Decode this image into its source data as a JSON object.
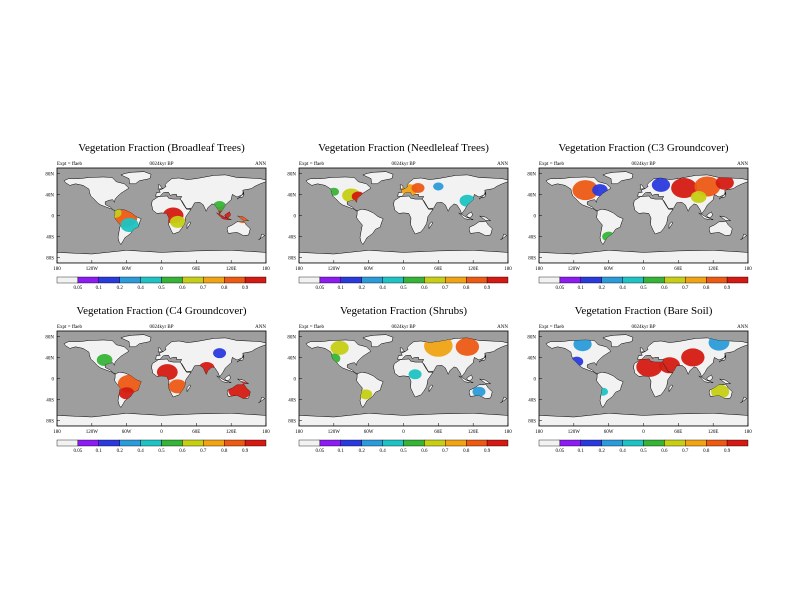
{
  "colorbar": {
    "levels": [
      "0.05",
      "0.1",
      "0.2",
      "0.4",
      "0.5",
      "0.6",
      "0.7",
      "0.8",
      "0.9"
    ],
    "colors": [
      "#f2f2f2",
      "#8c1cf2",
      "#2a3adc",
      "#2b9bd9",
      "#1ec3c3",
      "#36b437",
      "#c6cf14",
      "#f0a315",
      "#ec5a14",
      "#d41a12"
    ]
  },
  "map_colors": {
    "ocean": "#9e9e9e",
    "land": "#f2f2f2",
    "coast": "#000000"
  },
  "x_ticks": [
    "180",
    "120W",
    "60W",
    "0",
    "60E",
    "120E",
    "180"
  ],
  "y_ticks": [
    "80N",
    "40N",
    "0",
    "40S",
    "80S"
  ],
  "chart_data": [
    {
      "type": "heatmap",
      "title": "Vegetation Fraction (Broadleaf Trees)",
      "expt": "Expt = ffaeb",
      "subtitle": "0024kyr BP",
      "season": "ANN",
      "hotspots": [
        {
          "lon": -62,
          "lat": -5,
          "value": 0.8,
          "r": 9
        },
        {
          "lon": -55,
          "lat": -18,
          "value": 0.4,
          "r": 7
        },
        {
          "lon": -80,
          "lat": 5,
          "value": 0.6,
          "r": 5
        },
        {
          "lon": 20,
          "lat": 0,
          "value": 0.9,
          "r": 8
        },
        {
          "lon": 28,
          "lat": -12,
          "value": 0.6,
          "r": 6
        },
        {
          "lon": 110,
          "lat": 0,
          "value": 0.9,
          "r": 10
        },
        {
          "lon": 140,
          "lat": -5,
          "value": 0.8,
          "r": 5
        },
        {
          "lon": 100,
          "lat": 18,
          "value": 0.5,
          "r": 5
        }
      ]
    },
    {
      "type": "heatmap",
      "title": "Vegetation Fraction (Needleleaf Trees)",
      "expt": "Expt = ffaeb",
      "subtitle": "0024kyr BP",
      "season": "ANN",
      "hotspots": [
        {
          "lon": -90,
          "lat": 38,
          "value": 0.6,
          "r": 7
        },
        {
          "lon": -78,
          "lat": 36,
          "value": 0.9,
          "r": 5
        },
        {
          "lon": -120,
          "lat": 45,
          "value": 0.5,
          "r": 4
        },
        {
          "lon": 10,
          "lat": 48,
          "value": 0.7,
          "r": 6
        },
        {
          "lon": 25,
          "lat": 52,
          "value": 0.8,
          "r": 5
        },
        {
          "lon": 110,
          "lat": 28,
          "value": 0.4,
          "r": 6
        },
        {
          "lon": 60,
          "lat": 55,
          "value": 0.2,
          "r": 4
        }
      ]
    },
    {
      "type": "heatmap",
      "title": "Vegetation Fraction (C3 Groundcover)",
      "expt": "Expt = ffaeb",
      "subtitle": "0024kyr BP",
      "season": "ANN",
      "hotspots": [
        {
          "lon": -100,
          "lat": 48,
          "value": 0.8,
          "r": 10
        },
        {
          "lon": -75,
          "lat": 48,
          "value": 0.1,
          "r": 6
        },
        {
          "lon": 30,
          "lat": 58,
          "value": 0.1,
          "r": 7
        },
        {
          "lon": 70,
          "lat": 52,
          "value": 0.9,
          "r": 10
        },
        {
          "lon": 110,
          "lat": 55,
          "value": 0.8,
          "r": 10
        },
        {
          "lon": 140,
          "lat": 62,
          "value": 0.9,
          "r": 7
        },
        {
          "lon": 95,
          "lat": 35,
          "value": 0.6,
          "r": 6
        },
        {
          "lon": -60,
          "lat": -40,
          "value": 0.5,
          "r": 5
        }
      ]
    },
    {
      "type": "heatmap",
      "title": "Vegetation Fraction (C4 Groundcover)",
      "expt": "Expt = ffaeb",
      "subtitle": "0024kyr BP",
      "season": "ANN",
      "hotspots": [
        {
          "lon": -98,
          "lat": 35,
          "value": 0.5,
          "r": 6
        },
        {
          "lon": -55,
          "lat": -10,
          "value": 0.8,
          "r": 9
        },
        {
          "lon": -60,
          "lat": -28,
          "value": 0.9,
          "r": 6
        },
        {
          "lon": 10,
          "lat": 12,
          "value": 0.9,
          "r": 8
        },
        {
          "lon": 28,
          "lat": -15,
          "value": 0.8,
          "r": 7
        },
        {
          "lon": 78,
          "lat": 20,
          "value": 0.9,
          "r": 6
        },
        {
          "lon": 135,
          "lat": -22,
          "value": 0.9,
          "r": 9
        },
        {
          "lon": 100,
          "lat": 48,
          "value": 0.1,
          "r": 5
        }
      ]
    },
    {
      "type": "heatmap",
      "title": "Vegetation Fraction (Shrubs)",
      "expt": "Expt = ffaeb",
      "subtitle": "0024kyr BP",
      "season": "ANN",
      "hotspots": [
        {
          "lon": -110,
          "lat": 58,
          "value": 0.6,
          "r": 7
        },
        {
          "lon": -120,
          "lat": 38,
          "value": 0.5,
          "r": 5
        },
        {
          "lon": 60,
          "lat": 62,
          "value": 0.7,
          "r": 11
        },
        {
          "lon": 110,
          "lat": 60,
          "value": 0.8,
          "r": 9
        },
        {
          "lon": 20,
          "lat": 8,
          "value": 0.4,
          "r": 5
        },
        {
          "lon": -65,
          "lat": -30,
          "value": 0.6,
          "r": 5
        },
        {
          "lon": 130,
          "lat": -25,
          "value": 0.3,
          "r": 5
        }
      ]
    },
    {
      "type": "heatmap",
      "title": "Vegetation Fraction (Bare Soil)",
      "expt": "Expt = ffaeb",
      "subtitle": "0024kyr BP",
      "season": "ANN",
      "hotspots": [
        {
          "lon": 10,
          "lat": 22,
          "value": 0.9,
          "r": 10
        },
        {
          "lon": 45,
          "lat": 25,
          "value": 0.9,
          "r": 8
        },
        {
          "lon": 85,
          "lat": 40,
          "value": 0.9,
          "r": 9
        },
        {
          "lon": 130,
          "lat": 68,
          "value": 0.2,
          "r": 8
        },
        {
          "lon": -105,
          "lat": 65,
          "value": 0.2,
          "r": 7
        },
        {
          "lon": -115,
          "lat": 32,
          "value": 0.1,
          "r": 5
        },
        {
          "lon": 132,
          "lat": -25,
          "value": 0.6,
          "r": 7
        },
        {
          "lon": -70,
          "lat": -25,
          "value": 0.4,
          "r": 4
        }
      ]
    }
  ]
}
